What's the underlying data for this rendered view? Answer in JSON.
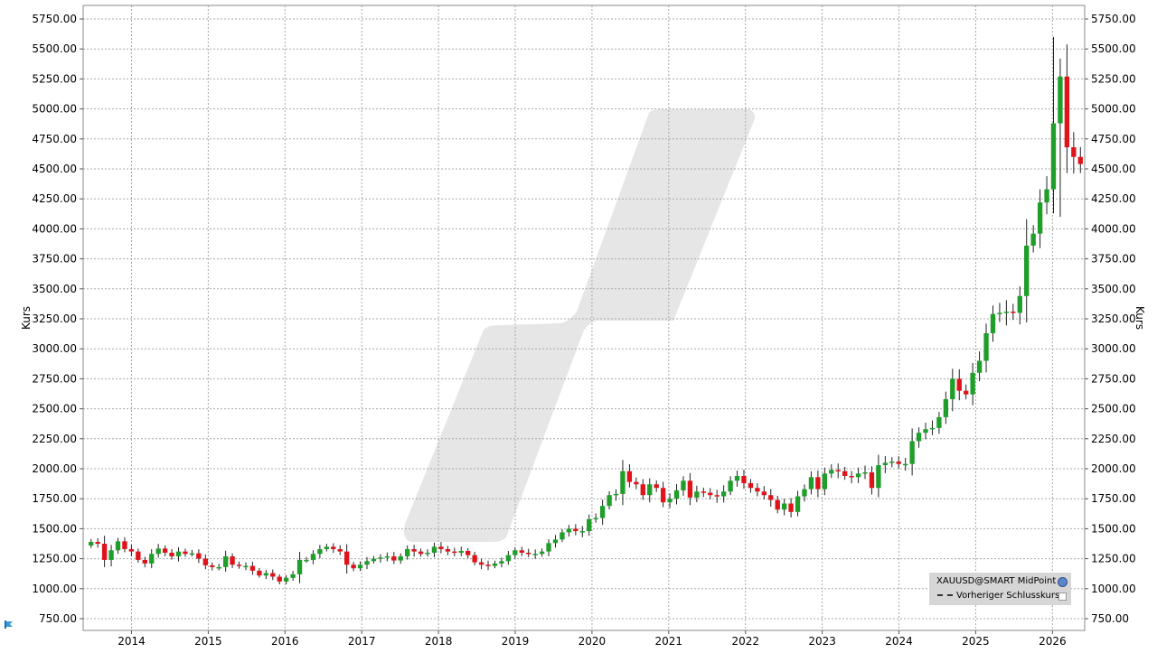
{
  "chart_data": {
    "type": "candlestick",
    "ylabel": "Kurs",
    "ylim": [
      700,
      5800
    ],
    "yticks": [
      750,
      1000,
      1250,
      1500,
      1750,
      2000,
      2250,
      2500,
      2750,
      3000,
      3250,
      3500,
      3750,
      4000,
      4250,
      4500,
      4750,
      5000,
      5250,
      5500,
      5750
    ],
    "ytick_labels": [
      "750.00",
      "1000.00",
      "1250.00",
      "1500.00",
      "1750.00",
      "2000.00",
      "2250.00",
      "2500.00",
      "2750.00",
      "3000.00",
      "3250.00",
      "3500.00",
      "3750.00",
      "4000.00",
      "4250.00",
      "4500.00",
      "4750.00",
      "5000.00",
      "5250.00",
      "5500.00",
      "5750.00"
    ],
    "xlim": [
      2013.37,
      2026.42
    ],
    "xticks": [
      2014,
      2015,
      2016,
      2017,
      2018,
      2019,
      2020,
      2021,
      2022,
      2023,
      2024,
      2025,
      2026
    ],
    "xtick_labels": [
      "2014",
      "2015",
      "2016",
      "2017",
      "2018",
      "2019",
      "2020",
      "2021",
      "2022",
      "2023",
      "2024",
      "2025",
      "2026"
    ],
    "grid": true,
    "legend_position": "bottom-right",
    "up_color": "#1f9e2a",
    "down_color": "#e0131b",
    "closes": [
      1390,
      1375,
      1240,
      1320,
      1395,
      1330,
      1310,
      1240,
      1210,
      1290,
      1335,
      1300,
      1270,
      1310,
      1290,
      1295,
      1250,
      1195,
      1180,
      1180,
      1270,
      1200,
      1190,
      1190,
      1150,
      1110,
      1130,
      1100,
      1060,
      1090,
      1120,
      1240,
      1240,
      1290,
      1330,
      1350,
      1330,
      1310,
      1200,
      1170,
      1200,
      1230,
      1250,
      1260,
      1270,
      1235,
      1270,
      1330,
      1310,
      1290,
      1300,
      1350,
      1330,
      1310,
      1300,
      1315,
      1280,
      1220,
      1200,
      1190,
      1210,
      1230,
      1280,
      1320,
      1300,
      1290,
      1290,
      1310,
      1380,
      1410,
      1470,
      1500,
      1480,
      1480,
      1580,
      1590,
      1690,
      1780,
      1790,
      1980,
      1890,
      1870,
      1780,
      1870,
      1840,
      1720,
      1750,
      1820,
      1900,
      1760,
      1810,
      1800,
      1780,
      1770,
      1810,
      1900,
      1940,
      1880,
      1840,
      1810,
      1780,
      1740,
      1660,
      1710,
      1640,
      1770,
      1830,
      1930,
      1830,
      1960,
      1990,
      1980,
      1940,
      1930,
      1960,
      1970,
      1840,
      2030,
      2050,
      2060,
      2040,
      2040,
      2230,
      2300,
      2330,
      2340,
      2430,
      2580,
      2750,
      2650,
      2620,
      2800,
      2900,
      3130,
      3290,
      3300,
      3310,
      3300,
      3440,
      3860,
      3960,
      4220,
      4330,
      4880,
      5270,
      4680,
      4600,
      4540
    ],
    "wick_notes": "OHLC approximated from chart: 150 monthly candles Jun 2013 - Apr 2026; lowest low ~1050 (late 2015), highest high ~5600 (Jan 2026)"
  },
  "legend": {
    "items": [
      {
        "label": "XAUUSD@SMART MidPoint"
      },
      {
        "label": "Vorheriger Schlusskurs"
      }
    ]
  },
  "icons": {
    "globe": "globe-icon",
    "checkbox": "checkbox-icon",
    "corner": "ib-flag-icon"
  }
}
